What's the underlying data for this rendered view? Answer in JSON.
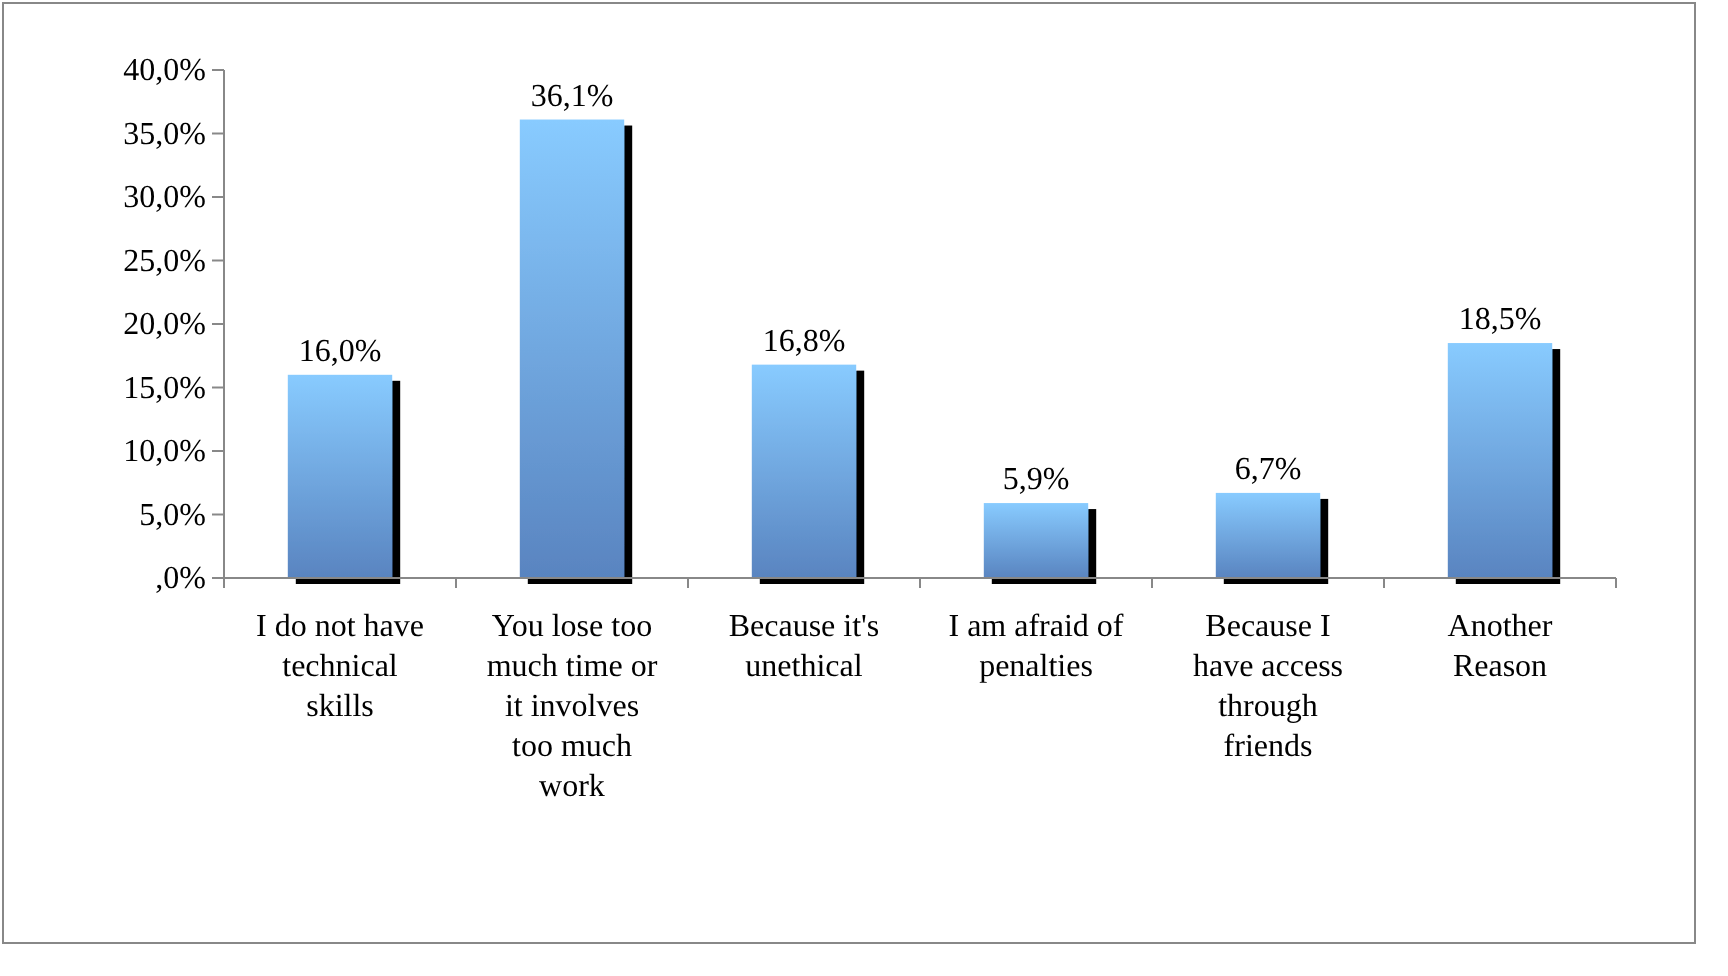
{
  "chart_data": {
    "type": "bar",
    "categories": [
      "I do not have technical skills",
      "You lose too much time or it involves too much work",
      "Because it's unethical",
      "I am afraid of penalties",
      "Because I have access through friends",
      "Another Reason"
    ],
    "values": [
      16.0,
      36.1,
      16.8,
      5.9,
      6.7,
      18.5
    ],
    "value_labels": [
      "16,0%",
      "36,1%",
      "16,8%",
      "5,9%",
      "6,7%",
      "18,5%"
    ],
    "color": "#6a9ee6",
    "ylim": [
      0,
      40
    ],
    "yticks": [
      {
        "value": 0,
        "label": ",0%"
      },
      {
        "value": 5,
        "label": "5,0%"
      },
      {
        "value": 10,
        "label": "10,0%"
      },
      {
        "value": 15,
        "label": "15,0%"
      },
      {
        "value": 20,
        "label": "20,0%"
      },
      {
        "value": 25,
        "label": "25,0%"
      },
      {
        "value": 30,
        "label": "30,0%"
      },
      {
        "value": 35,
        "label": "35,0%"
      },
      {
        "value": 40,
        "label": "40,0%"
      }
    ],
    "grid": false
  }
}
